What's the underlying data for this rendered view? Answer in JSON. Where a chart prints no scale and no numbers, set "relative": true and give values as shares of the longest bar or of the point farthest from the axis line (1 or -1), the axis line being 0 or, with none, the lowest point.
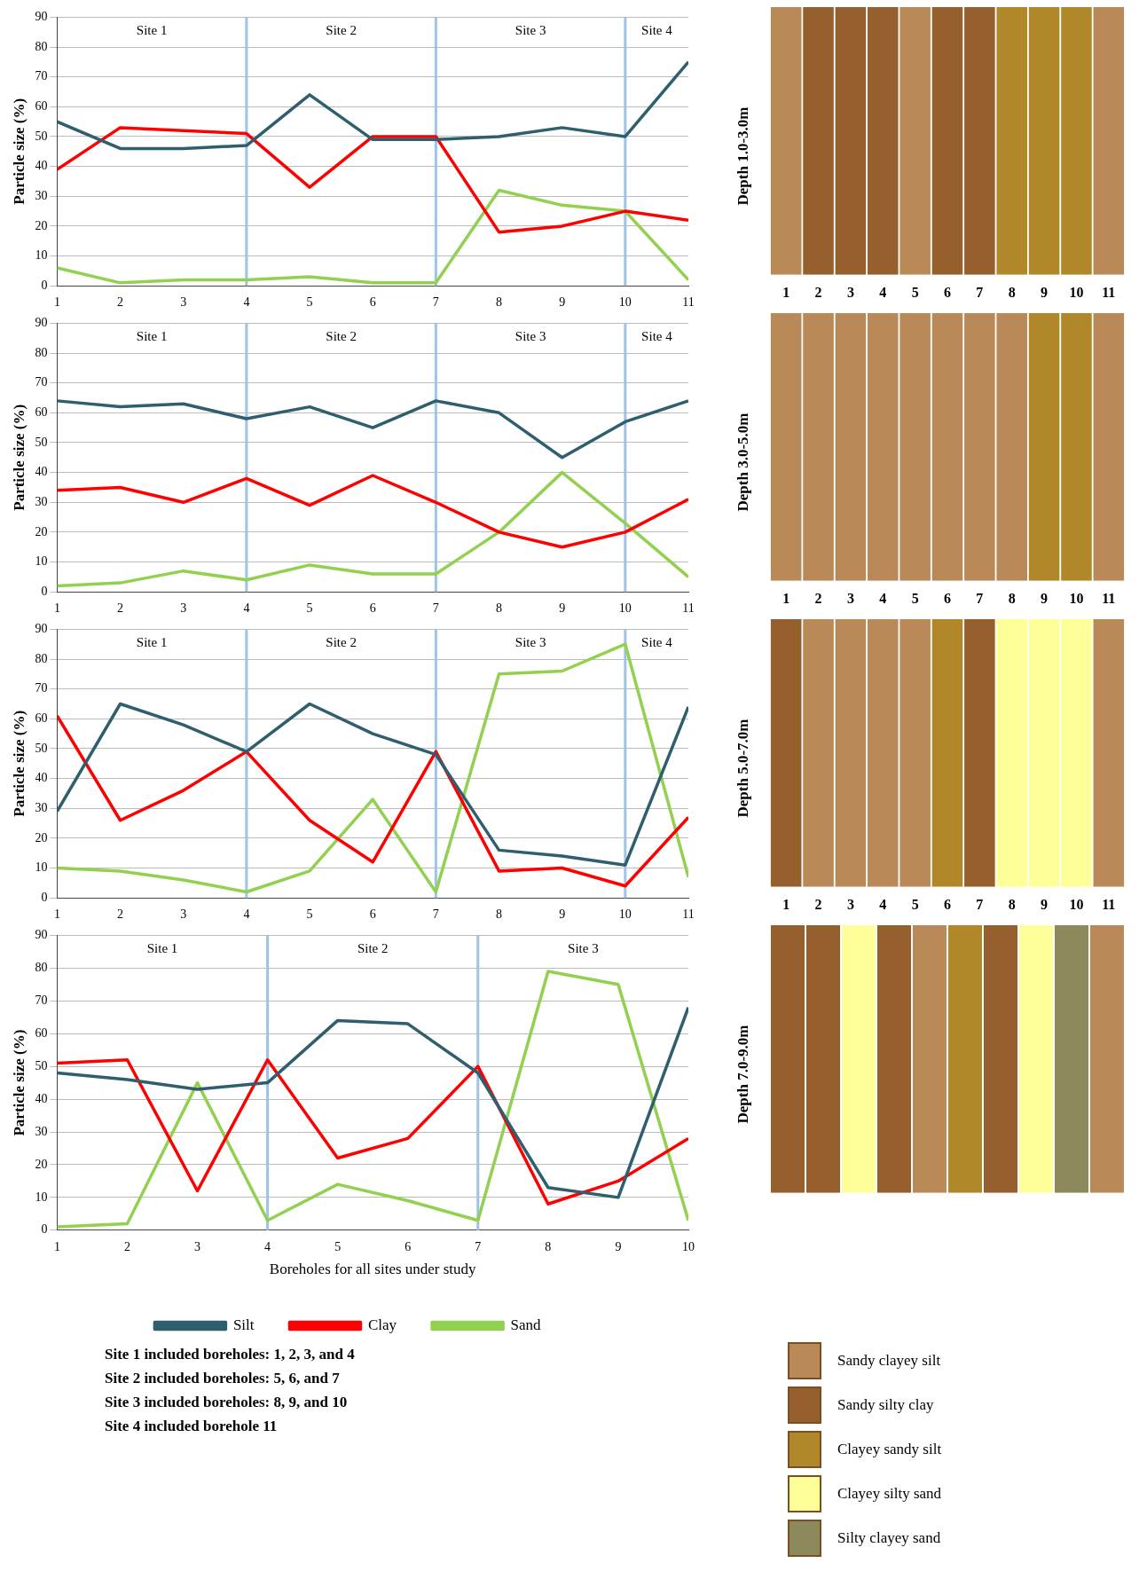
{
  "chart_data": [
    {
      "type": "line",
      "x": [
        1,
        2,
        3,
        4,
        5,
        6,
        7,
        8,
        9,
        10,
        11
      ],
      "xlim": [
        1,
        11
      ],
      "xticks": [
        1,
        2,
        3,
        4,
        5,
        6,
        7,
        8,
        9,
        10,
        11
      ],
      "ylim": [
        0,
        90
      ],
      "yticks": [
        0,
        10,
        20,
        30,
        40,
        50,
        60,
        70,
        80,
        90
      ],
      "ylabel": "Particle size (%)",
      "grid": "y",
      "marker": "none",
      "legend": false,
      "ref_lines": [
        {
          "axis": "x",
          "value": 4,
          "color": "#9dc3e6"
        },
        {
          "axis": "x",
          "value": 7,
          "color": "#9dc3e6"
        },
        {
          "axis": "x",
          "value": 10,
          "color": "#9dc3e6"
        }
      ],
      "annotations": [
        "Site 1",
        "Site 2",
        "Site 3",
        "Site 4"
      ],
      "series": [
        {
          "color": "#2f5f6e",
          "values": [
            55,
            46,
            46,
            47,
            64,
            49,
            49,
            50,
            53,
            50,
            75
          ]
        },
        {
          "color": "#ff0000",
          "values": [
            39,
            53,
            52,
            51,
            33,
            50,
            50,
            18,
            20,
            25,
            22
          ]
        },
        {
          "color": "#92d050",
          "values": [
            6,
            1,
            2,
            2,
            3,
            1,
            1,
            32,
            27,
            25,
            2
          ]
        }
      ]
    },
    {
      "type": "bar",
      "relative": true,
      "ylabel": "Depth 1.0-3.0m",
      "values": [
        1,
        1,
        1,
        1,
        1,
        1,
        1,
        1,
        1,
        1,
        1
      ],
      "categories": [
        "1",
        "2",
        "3",
        "4",
        "5",
        "6",
        "7",
        "8",
        "9",
        "10",
        "11"
      ],
      "colors": [
        "#b98a57",
        "#96602e",
        "#96602e",
        "#96602e",
        "#b98a57",
        "#96602e",
        "#96602e",
        "#b0882a",
        "#b0882a",
        "#b0882a",
        "#b98a57"
      ]
    },
    {
      "type": "line",
      "x": [
        1,
        2,
        3,
        4,
        5,
        6,
        7,
        8,
        9,
        10,
        11
      ],
      "xlim": [
        1,
        11
      ],
      "xticks": [
        1,
        2,
        3,
        4,
        5,
        6,
        7,
        8,
        9,
        10,
        11
      ],
      "ylim": [
        0,
        90
      ],
      "yticks": [
        0,
        10,
        20,
        30,
        40,
        50,
        60,
        70,
        80,
        90
      ],
      "ylabel": "Particle size (%)",
      "grid": "y",
      "marker": "none",
      "legend": false,
      "ref_lines": [
        {
          "axis": "x",
          "value": 4,
          "color": "#9dc3e6"
        },
        {
          "axis": "x",
          "value": 7,
          "color": "#9dc3e6"
        },
        {
          "axis": "x",
          "value": 10,
          "color": "#9dc3e6"
        }
      ],
      "annotations": [
        "Site 1",
        "Site 2",
        "Site 3",
        "Site 4"
      ],
      "series": [
        {
          "color": "#2f5f6e",
          "values": [
            64,
            62,
            63,
            58,
            62,
            55,
            64,
            60,
            45,
            57,
            64
          ]
        },
        {
          "color": "#ff0000",
          "values": [
            34,
            35,
            30,
            38,
            29,
            39,
            30,
            20,
            15,
            20,
            31
          ]
        },
        {
          "color": "#92d050",
          "values": [
            2,
            3,
            7,
            4,
            9,
            6,
            6,
            20,
            40,
            23,
            5
          ]
        }
      ]
    },
    {
      "type": "bar",
      "relative": true,
      "ylabel": "Depth 3.0-5.0m",
      "values": [
        1,
        1,
        1,
        1,
        1,
        1,
        1,
        1,
        1,
        1,
        1
      ],
      "categories": [
        "1",
        "2",
        "3",
        "4",
        "5",
        "6",
        "7",
        "8",
        "9",
        "10",
        "11"
      ],
      "colors": [
        "#b98a57",
        "#b98a57",
        "#b98a57",
        "#b98a57",
        "#b98a57",
        "#b98a57",
        "#b98a57",
        "#b98a57",
        "#b0882a",
        "#b0882a",
        "#b98a57"
      ]
    },
    {
      "type": "line",
      "x": [
        1,
        2,
        3,
        4,
        5,
        6,
        7,
        8,
        9,
        10,
        11
      ],
      "xlim": [
        1,
        11
      ],
      "xticks": [
        1,
        2,
        3,
        4,
        5,
        6,
        7,
        8,
        9,
        10,
        11
      ],
      "ylim": [
        0,
        90
      ],
      "yticks": [
        0,
        10,
        20,
        30,
        40,
        50,
        60,
        70,
        80,
        90
      ],
      "ylabel": "Particle size (%)",
      "grid": "y",
      "marker": "none",
      "legend": false,
      "ref_lines": [
        {
          "axis": "x",
          "value": 4,
          "color": "#9dc3e6"
        },
        {
          "axis": "x",
          "value": 7,
          "color": "#9dc3e6"
        },
        {
          "axis": "x",
          "value": 10,
          "color": "#9dc3e6"
        }
      ],
      "annotations": [
        "Site 1",
        "Site 2",
        "Site 3",
        "Site 4"
      ],
      "series": [
        {
          "color": "#2f5f6e",
          "values": [
            29,
            65,
            58,
            49,
            65,
            55,
            48,
            16,
            14,
            11,
            64
          ]
        },
        {
          "color": "#ff0000",
          "values": [
            61,
            26,
            36,
            49,
            26,
            12,
            49,
            9,
            10,
            4,
            27
          ]
        },
        {
          "color": "#92d050",
          "values": [
            10,
            9,
            6,
            2,
            9,
            33,
            2,
            75,
            76,
            85,
            7
          ]
        }
      ]
    },
    {
      "type": "bar",
      "relative": true,
      "ylabel": "Depth 5.0-7.0m",
      "values": [
        1,
        1,
        1,
        1,
        1,
        1,
        1,
        1,
        1,
        1,
        1
      ],
      "categories": [
        "1",
        "2",
        "3",
        "4",
        "5",
        "6",
        "7",
        "8",
        "9",
        "10",
        "11"
      ],
      "colors": [
        "#96602e",
        "#b98a57",
        "#b98a57",
        "#b98a57",
        "#b98a57",
        "#b0882a",
        "#96602e",
        "#ffff99",
        "#ffff99",
        "#ffff99",
        "#b98a57"
      ]
    },
    {
      "type": "line",
      "x": [
        1,
        2,
        3,
        4,
        5,
        6,
        7,
        8,
        9,
        10
      ],
      "xlim": [
        1,
        10
      ],
      "xticks": [
        1,
        2,
        3,
        4,
        5,
        6,
        7,
        8,
        9,
        10
      ],
      "ylim": [
        0,
        90
      ],
      "yticks": [
        0,
        10,
        20,
        30,
        40,
        50,
        60,
        70,
        80,
        90
      ],
      "ylabel": "Particle size (%)",
      "xlabel": "Boreholes for all sites under study",
      "grid": "y",
      "marker": "none",
      "legend": "bottom",
      "ref_lines": [
        {
          "axis": "x",
          "value": 4,
          "color": "#9dc3e6"
        },
        {
          "axis": "x",
          "value": 7,
          "color": "#9dc3e6"
        }
      ],
      "annotations": [
        "Site 1",
        "Site 2",
        "Site 3"
      ],
      "series": [
        {
          "name": "Silt",
          "color": "#2f5f6e",
          "values": [
            48,
            46,
            43,
            45,
            64,
            63,
            48,
            13,
            10,
            68
          ]
        },
        {
          "name": "Clay",
          "color": "#ff0000",
          "values": [
            51,
            52,
            12,
            52,
            22,
            28,
            50,
            8,
            15,
            28
          ]
        },
        {
          "name": "Sand",
          "color": "#92d050",
          "values": [
            1,
            2,
            45,
            3,
            14,
            9,
            3,
            79,
            75,
            3
          ]
        }
      ]
    },
    {
      "type": "bar",
      "relative": true,
      "ylabel": "Depth 7.0-9.0m",
      "values": [
        1,
        1,
        1,
        1,
        1,
        1,
        1,
        1,
        1,
        1
      ],
      "categories": [
        null,
        null,
        null,
        null,
        null,
        null,
        null,
        null,
        null,
        null
      ],
      "colors": [
        "#96602e",
        "#96602e",
        "#ffff99",
        "#96602e",
        "#b98a57",
        "#b0882a",
        "#96602e",
        "#ffff99",
        "#8c8a5c",
        "#b98a57"
      ]
    },
    {
      "type": "other",
      "categories": [
        "Sandy clayey silt",
        "Sandy silty clay",
        "Clayey sandy silt",
        "Clayey silty sand",
        "Silty clayey sand"
      ],
      "colors": [
        "#b98a57",
        "#96602e",
        "#b0882a",
        "#ffff99",
        "#8c8a5c"
      ],
      "annotations": [
        "Site 1 included boreholes: 1, 2, 3, and 4",
        "Site 2 included boreholes: 5, 6, and 7",
        "Site 3 included boreholes: 8, 9, and 10",
        "Site 4 included borehole 11"
      ]
    }
  ]
}
